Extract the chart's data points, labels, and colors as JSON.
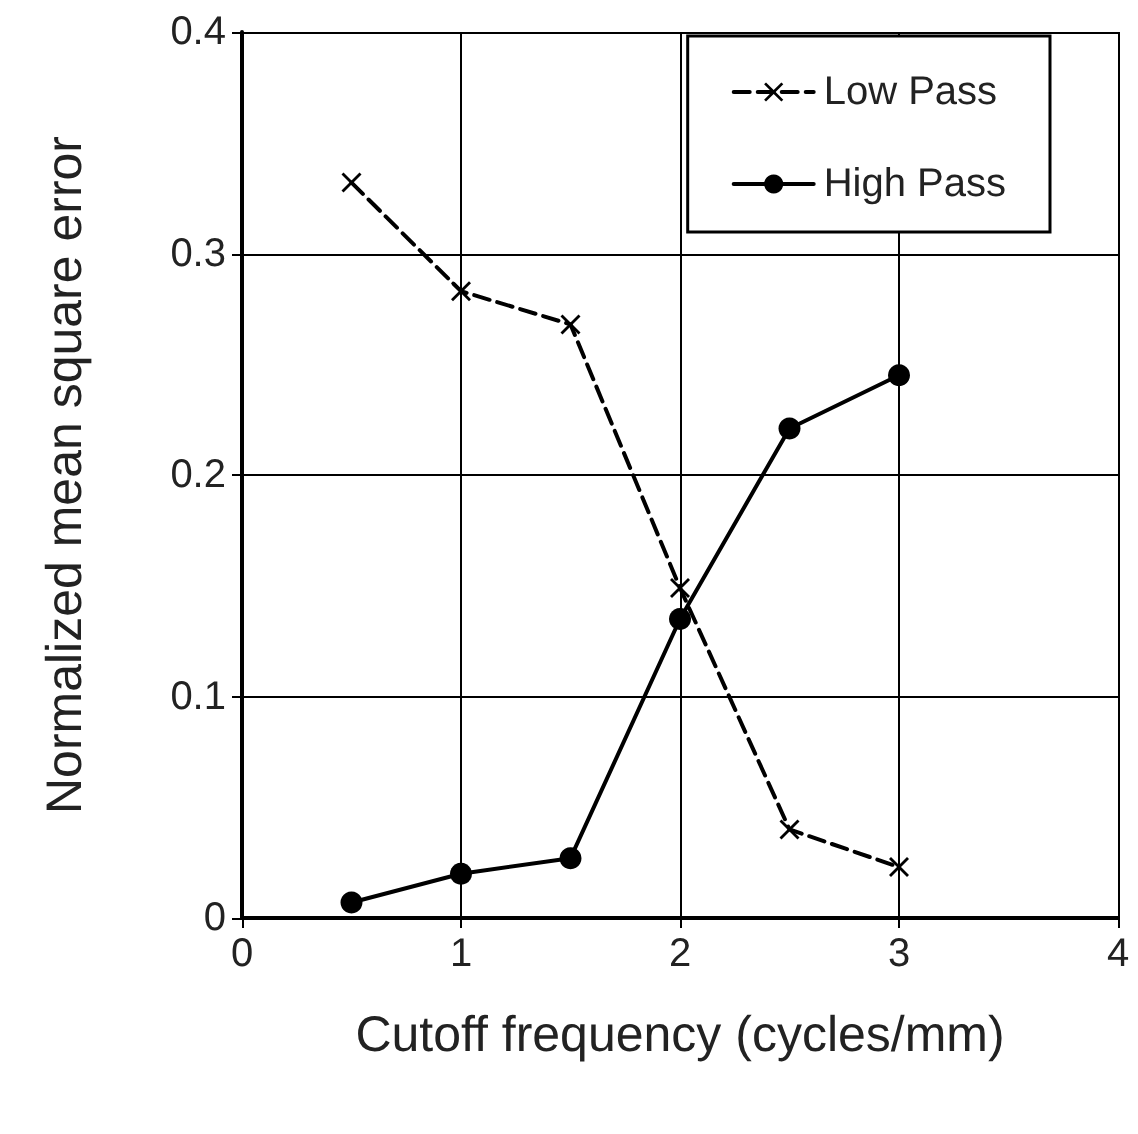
{
  "chart_data": {
    "type": "line",
    "xlabel": "Cutoff frequency (cycles/mm)",
    "ylabel": "Normalized mean square error",
    "x": [
      0.5,
      1,
      1.5,
      2,
      2.5,
      3
    ],
    "series": [
      {
        "name": "Low Pass",
        "color": "#000000",
        "marker": "cross",
        "line_style": "dashed",
        "values": [
          0.332,
          0.283,
          0.268,
          0.149,
          0.04,
          0.023
        ]
      },
      {
        "name": "High Pass",
        "color": "#000000",
        "marker": "circle",
        "line_style": "solid",
        "values": [
          0.007,
          0.02,
          0.027,
          0.135,
          0.221,
          0.245
        ]
      }
    ],
    "xlim": [
      0,
      4
    ],
    "xticks": [
      0,
      1,
      2,
      3,
      4
    ],
    "ylim": [
      0,
      0.4
    ],
    "yticks": [
      0,
      0.1,
      0.2,
      0.3,
      0.4
    ],
    "grid": true,
    "legend": "top right"
  }
}
